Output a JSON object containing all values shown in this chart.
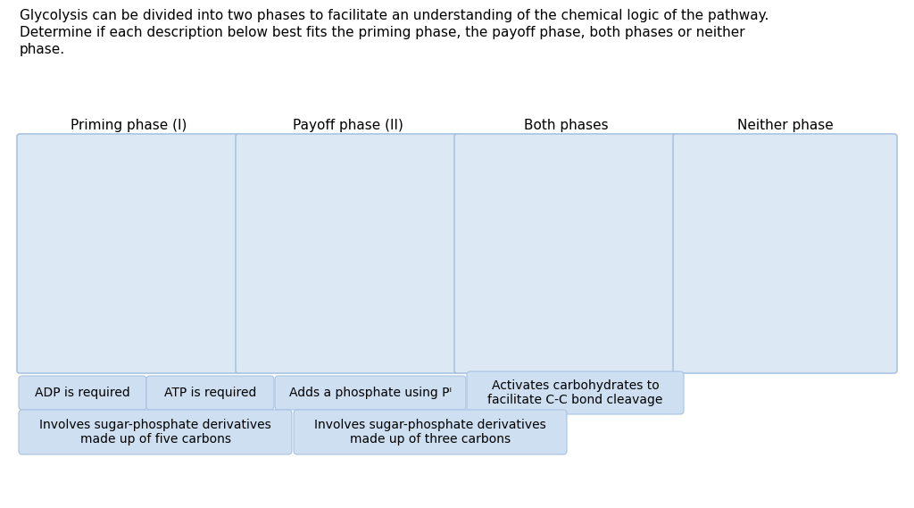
{
  "title_text": "Glycolysis can be divided into two phases to facilitate an understanding of the chemical logic of the pathway.\nDetermine if each description below best fits the priming phase, the payoff phase, both phases or neither\nphase.",
  "column_headers": [
    "Priming phase (I)",
    "Payoff phase (II)",
    "Both phases",
    "Neither phase"
  ],
  "box_facecolor": "#dce9f5",
  "box_edgecolor": "#aac4e0",
  "header_fontsize": 11,
  "title_fontsize": 11,
  "tag_items": [
    {
      "text": "ADP is required",
      "col": 0,
      "row": 0
    },
    {
      "text": "ATP is required",
      "col": 1,
      "row": 0
    },
    {
      "text": "Adds a phosphate using Pᴵ",
      "col": 2,
      "row": 0
    },
    {
      "text": "Activates carbohydrates to\nfacilitate C-C bond cleavage",
      "col": 3,
      "row": 0
    },
    {
      "text": "Involves sugar-phosphate derivatives\nmade up of five carbons",
      "col": 0,
      "row": 1
    },
    {
      "text": "Involves sugar-phosphate derivatives\nmade up of three carbons",
      "col": 2,
      "row": 1
    }
  ],
  "background_color": "#ffffff",
  "text_color": "#000000",
  "tag_bg": "#cddff0",
  "tag_edge": "#aac4e0",
  "tag_fontsize": 10
}
